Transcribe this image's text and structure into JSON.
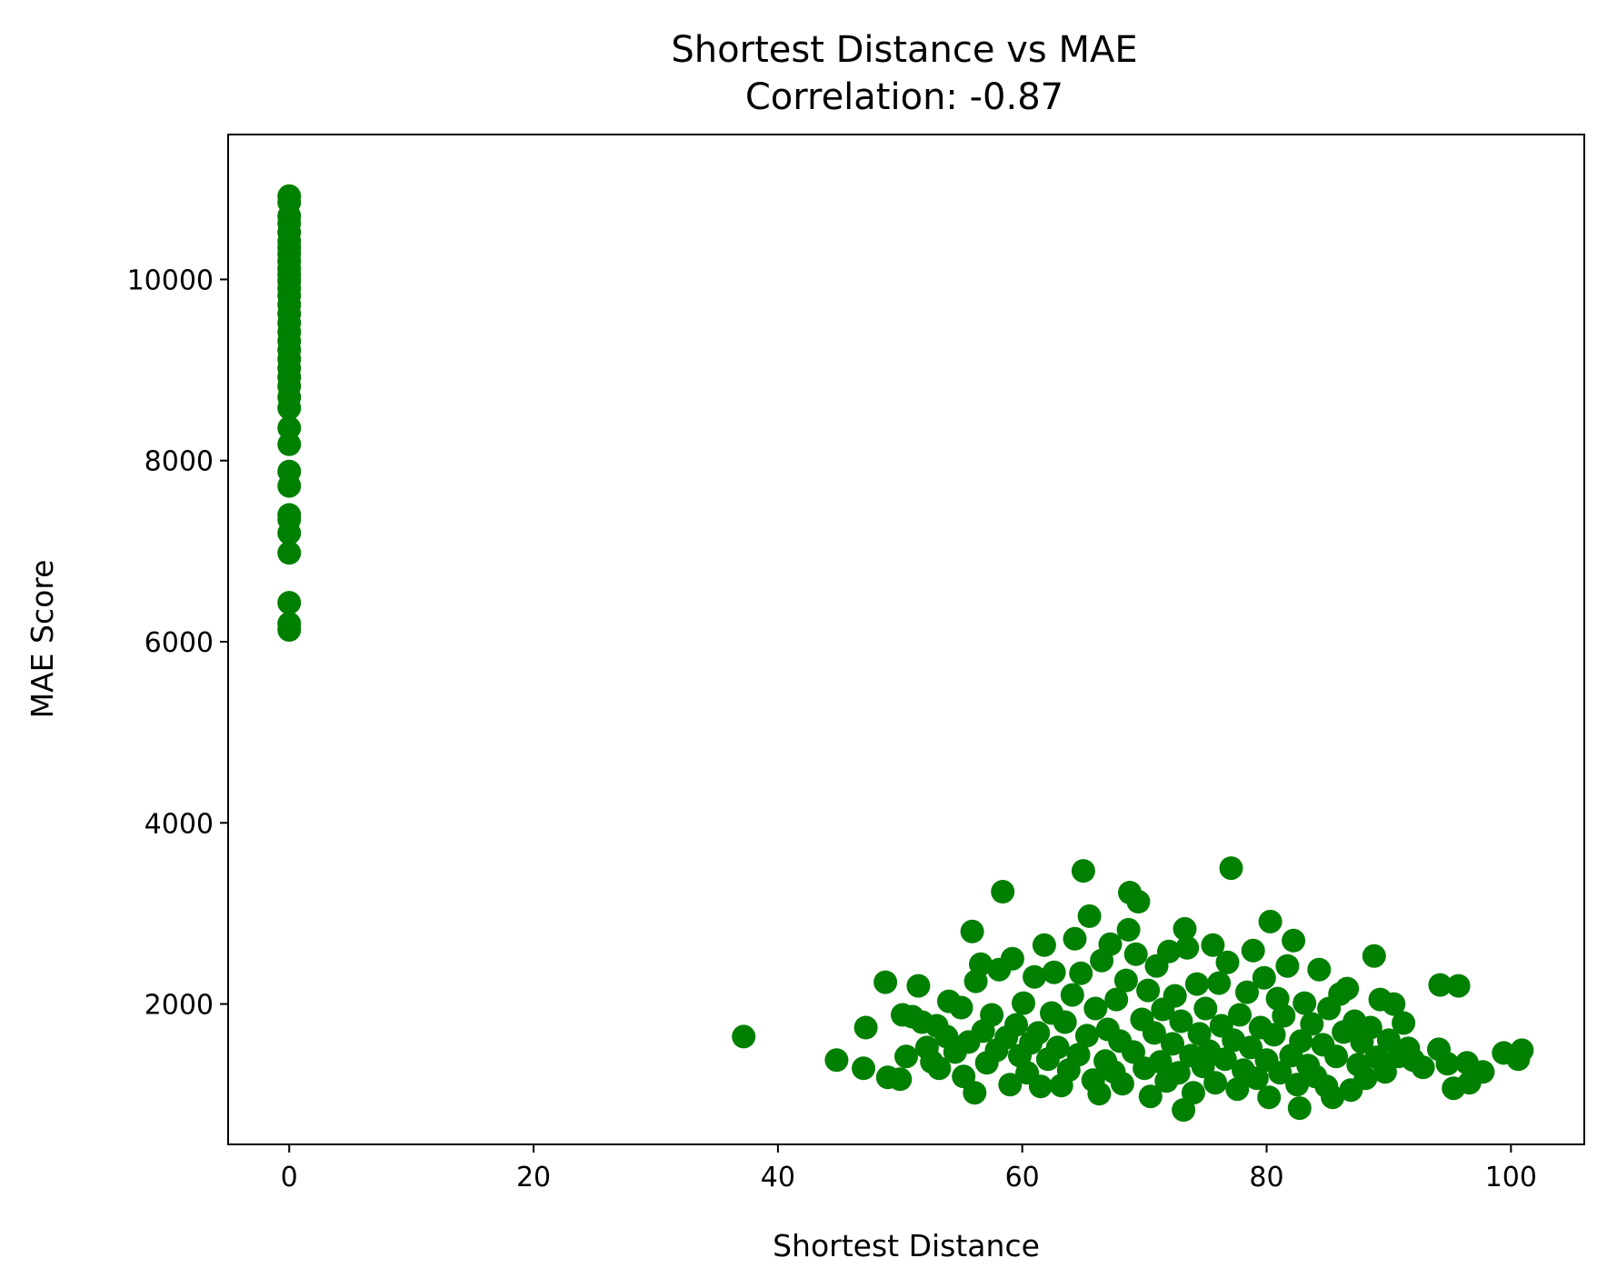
{
  "chart_data": {
    "type": "scatter",
    "title": "Shortest Distance vs MAE",
    "subtitle": "Correlation: -0.87",
    "xlabel": "Shortest Distance",
    "ylabel": "MAE Score",
    "xlim": [
      -5,
      106
    ],
    "ylim": [
      450,
      11600
    ],
    "xticks": [
      0,
      20,
      40,
      60,
      80,
      100
    ],
    "yticks": [
      2000,
      4000,
      6000,
      8000,
      10000
    ],
    "grid": false,
    "legend": "none",
    "marker_color": "#008000",
    "series": [
      {
        "points": [
          [
            0,
            10920
          ],
          [
            0,
            10850
          ],
          [
            0,
            10700
          ],
          [
            0,
            10620
          ],
          [
            0,
            10520
          ],
          [
            0,
            10420
          ],
          [
            0,
            10350
          ],
          [
            0,
            10280
          ],
          [
            0,
            10200
          ],
          [
            0,
            10120
          ],
          [
            0,
            10050
          ],
          [
            0,
            9980
          ],
          [
            0,
            9900
          ],
          [
            0,
            9820
          ],
          [
            0,
            9720
          ],
          [
            0,
            9620
          ],
          [
            0,
            9520
          ],
          [
            0,
            9420
          ],
          [
            0,
            9320
          ],
          [
            0,
            9220
          ],
          [
            0,
            9120
          ],
          [
            0,
            9020
          ],
          [
            0,
            8920
          ],
          [
            0,
            8820
          ],
          [
            0,
            8700
          ],
          [
            0,
            8580
          ],
          [
            0,
            8360
          ],
          [
            0,
            8180
          ],
          [
            0,
            7880
          ],
          [
            0,
            7720
          ],
          [
            0,
            7400
          ],
          [
            0,
            7350
          ],
          [
            0,
            7200
          ],
          [
            0,
            6980
          ],
          [
            0,
            6430
          ],
          [
            0,
            6200
          ],
          [
            0,
            6130
          ],
          [
            37.2,
            1640
          ],
          [
            44.8,
            1380
          ],
          [
            47.0,
            1290
          ],
          [
            47.2,
            1740
          ],
          [
            48.8,
            2240
          ],
          [
            49.0,
            1190
          ],
          [
            50.0,
            1170
          ],
          [
            50.2,
            1880
          ],
          [
            50.5,
            1420
          ],
          [
            51.0,
            1860
          ],
          [
            51.5,
            2200
          ],
          [
            51.8,
            1800
          ],
          [
            52.2,
            1520
          ],
          [
            52.6,
            1360
          ],
          [
            53.0,
            1760
          ],
          [
            53.2,
            1290
          ],
          [
            53.8,
            1640
          ],
          [
            54.0,
            2030
          ],
          [
            54.5,
            1470
          ],
          [
            55.0,
            1960
          ],
          [
            55.2,
            1200
          ],
          [
            55.6,
            1580
          ],
          [
            55.9,
            2800
          ],
          [
            56.1,
            1020
          ],
          [
            56.2,
            2250
          ],
          [
            56.6,
            2440
          ],
          [
            56.8,
            1700
          ],
          [
            57.1,
            1350
          ],
          [
            57.5,
            1880
          ],
          [
            57.9,
            1490
          ],
          [
            58.1,
            2380
          ],
          [
            58.4,
            3240
          ],
          [
            58.7,
            1630
          ],
          [
            59.0,
            1110
          ],
          [
            59.2,
            2500
          ],
          [
            59.5,
            1770
          ],
          [
            59.8,
            1430
          ],
          [
            60.1,
            2010
          ],
          [
            60.4,
            1240
          ],
          [
            60.7,
            1570
          ],
          [
            61.0,
            2300
          ],
          [
            61.3,
            1680
          ],
          [
            61.5,
            1090
          ],
          [
            61.8,
            2650
          ],
          [
            62.1,
            1390
          ],
          [
            62.4,
            1900
          ],
          [
            62.6,
            2350
          ],
          [
            62.9,
            1520
          ],
          [
            63.2,
            1100
          ],
          [
            63.5,
            1800
          ],
          [
            63.8,
            1270
          ],
          [
            64.1,
            2100
          ],
          [
            64.3,
            2720
          ],
          [
            64.6,
            1440
          ],
          [
            64.8,
            2340
          ],
          [
            65.0,
            3470
          ],
          [
            65.3,
            1650
          ],
          [
            65.5,
            2970
          ],
          [
            65.8,
            1160
          ],
          [
            66.0,
            1950
          ],
          [
            66.3,
            1010
          ],
          [
            66.5,
            2480
          ],
          [
            66.8,
            1370
          ],
          [
            67.0,
            1720
          ],
          [
            67.2,
            2660
          ],
          [
            67.5,
            1250
          ],
          [
            67.7,
            2050
          ],
          [
            68.0,
            1590
          ],
          [
            68.2,
            1120
          ],
          [
            68.5,
            2260
          ],
          [
            68.7,
            2820
          ],
          [
            68.8,
            3230
          ],
          [
            69.1,
            1470
          ],
          [
            69.3,
            2550
          ],
          [
            69.5,
            3130
          ],
          [
            69.8,
            1830
          ],
          [
            70.0,
            1290
          ],
          [
            70.3,
            2150
          ],
          [
            70.5,
            980
          ],
          [
            70.8,
            1680
          ],
          [
            71.0,
            2420
          ],
          [
            71.3,
            1360
          ],
          [
            71.5,
            1940
          ],
          [
            71.8,
            1150
          ],
          [
            72.0,
            2580
          ],
          [
            72.3,
            1560
          ],
          [
            72.5,
            2090
          ],
          [
            72.8,
            1240
          ],
          [
            73.0,
            1810
          ],
          [
            73.2,
            830
          ],
          [
            73.3,
            2830
          ],
          [
            73.5,
            2620
          ],
          [
            73.8,
            1430
          ],
          [
            74.0,
            1020
          ],
          [
            74.3,
            2220
          ],
          [
            74.5,
            1670
          ],
          [
            74.8,
            1310
          ],
          [
            75.0,
            1950
          ],
          [
            75.3,
            1480
          ],
          [
            75.6,
            2650
          ],
          [
            75.8,
            1130
          ],
          [
            76.1,
            2230
          ],
          [
            76.3,
            1760
          ],
          [
            76.6,
            1390
          ],
          [
            76.8,
            2460
          ],
          [
            77.1,
            3500
          ],
          [
            77.3,
            1600
          ],
          [
            77.6,
            1060
          ],
          [
            77.8,
            1880
          ],
          [
            78.1,
            1270
          ],
          [
            78.4,
            2130
          ],
          [
            78.7,
            1520
          ],
          [
            78.9,
            2590
          ],
          [
            79.2,
            1180
          ],
          [
            79.5,
            1740
          ],
          [
            79.8,
            2290
          ],
          [
            80.0,
            1380
          ],
          [
            80.2,
            970
          ],
          [
            80.3,
            2910
          ],
          [
            80.6,
            1660
          ],
          [
            80.9,
            2060
          ],
          [
            81.1,
            1240
          ],
          [
            81.4,
            1870
          ],
          [
            81.7,
            2420
          ],
          [
            82.0,
            1430
          ],
          [
            82.2,
            2700
          ],
          [
            82.5,
            1110
          ],
          [
            82.7,
            850
          ],
          [
            82.8,
            1590
          ],
          [
            83.1,
            2010
          ],
          [
            83.4,
            1320
          ],
          [
            83.7,
            1780
          ],
          [
            84.0,
            1200
          ],
          [
            84.3,
            2380
          ],
          [
            84.6,
            1550
          ],
          [
            84.9,
            1090
          ],
          [
            85.1,
            1950
          ],
          [
            85.4,
            970
          ],
          [
            85.7,
            1420
          ],
          [
            86.0,
            2110
          ],
          [
            86.3,
            1690
          ],
          [
            86.6,
            2170
          ],
          [
            86.9,
            1050
          ],
          [
            87.2,
            1810
          ],
          [
            87.5,
            1330
          ],
          [
            87.8,
            1580
          ],
          [
            88.1,
            1180
          ],
          [
            88.5,
            1740
          ],
          [
            88.8,
            2530
          ],
          [
            89.0,
            1410
          ],
          [
            89.3,
            2050
          ],
          [
            89.7,
            1250
          ],
          [
            90.0,
            1600
          ],
          [
            90.4,
            2000
          ],
          [
            90.8,
            1420
          ],
          [
            91.2,
            1790
          ],
          [
            91.6,
            1510
          ],
          [
            92.0,
            1380
          ],
          [
            92.8,
            1300
          ],
          [
            94.1,
            1500
          ],
          [
            94.2,
            2210
          ],
          [
            94.8,
            1340
          ],
          [
            95.3,
            1070
          ],
          [
            95.7,
            2200
          ],
          [
            96.4,
            1350
          ],
          [
            96.6,
            1130
          ],
          [
            97.7,
            1250
          ],
          [
            99.4,
            1460
          ],
          [
            100.6,
            1390
          ],
          [
            100.9,
            1490
          ]
        ]
      }
    ]
  }
}
